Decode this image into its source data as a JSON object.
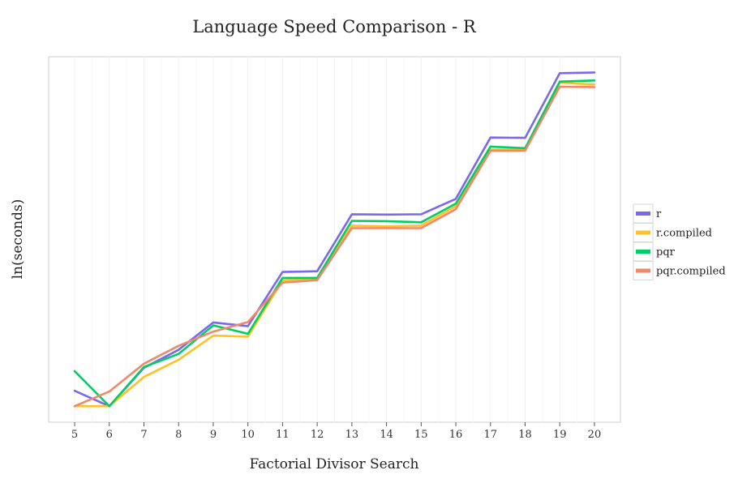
{
  "chart_data": {
    "type": "line",
    "title": "Language Speed Comparison - R",
    "xlabel": "Factorial Divisor Search",
    "ylabel": "ln(seconds)",
    "x": [
      5,
      6,
      7,
      8,
      9,
      10,
      11,
      12,
      13,
      14,
      15,
      16,
      17,
      18,
      19,
      20
    ],
    "xlim": [
      4.25,
      20.75
    ],
    "ylim": [
      0,
      100
    ],
    "y_ticks_shown": false,
    "grid": true,
    "legend_position": "right",
    "series": [
      {
        "name": "r",
        "color": "#7B68EE",
        "values": [
          8.6,
          4.4,
          14.9,
          19.8,
          27.3,
          26.3,
          41.1,
          41.3,
          56.9,
          56.8,
          56.9,
          61.1,
          77.9,
          77.8,
          95.5,
          95.7
        ]
      },
      {
        "name": "r.compiled",
        "color": "#FFC125",
        "values": [
          4.4,
          4.4,
          12.4,
          17.1,
          23.7,
          23.4,
          38.8,
          39.4,
          53.8,
          53.6,
          53.8,
          59.1,
          74.6,
          74.6,
          92.9,
          92.4
        ]
      },
      {
        "name": "pqr",
        "color": "#00CD66",
        "values": [
          14.0,
          4.4,
          15.1,
          18.7,
          26.5,
          24.2,
          39.5,
          39.5,
          55.1,
          55.0,
          54.7,
          59.8,
          75.4,
          75.0,
          93.2,
          93.5
        ]
      },
      {
        "name": "pqr.compiled",
        "color": "#EE8A6A",
        "values": [
          4.4,
          8.4,
          16.0,
          20.9,
          24.8,
          27.4,
          38.2,
          38.9,
          53.1,
          53.1,
          53.1,
          58.3,
          74.3,
          74.3,
          91.8,
          91.7
        ]
      }
    ]
  }
}
